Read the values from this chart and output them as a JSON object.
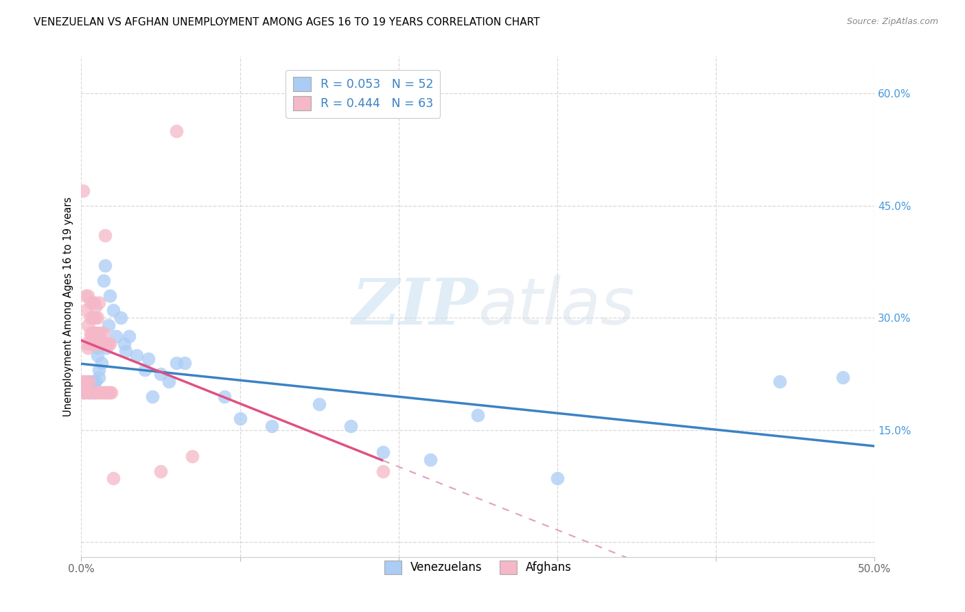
{
  "title": "VENEZUELAN VS AFGHAN UNEMPLOYMENT AMONG AGES 16 TO 19 YEARS CORRELATION CHART",
  "source": "Source: ZipAtlas.com",
  "ylabel": "Unemployment Among Ages 16 to 19 years",
  "xlim": [
    0.0,
    0.5
  ],
  "ylim": [
    -0.02,
    0.65
  ],
  "ytick_positions": [
    0.0,
    0.15,
    0.3,
    0.45,
    0.6
  ],
  "ytick_labels": [
    "",
    "15.0%",
    "30.0%",
    "45.0%",
    "60.0%"
  ],
  "xtick_positions": [
    0.0,
    0.1,
    0.2,
    0.3,
    0.4,
    0.5
  ],
  "xtick_labels": [
    "0.0%",
    "",
    "",
    "",
    "",
    "50.0%"
  ],
  "venezuelan_color": "#aaccf5",
  "afghan_color": "#f5b8c8",
  "venezuelan_line_color": "#3b82c4",
  "afghan_line_color": "#e05080",
  "afghan_line_dashed_color": "#e0a0b8",
  "r_venezuelan": 0.053,
  "n_venezuelan": 52,
  "r_afghan": 0.444,
  "n_afghan": 63,
  "venezuelan_x": [
    0.001,
    0.001,
    0.002,
    0.003,
    0.003,
    0.004,
    0.005,
    0.005,
    0.006,
    0.006,
    0.007,
    0.007,
    0.008,
    0.008,
    0.009,
    0.009,
    0.01,
    0.01,
    0.011,
    0.011,
    0.012,
    0.013,
    0.014,
    0.015,
    0.016,
    0.017,
    0.018,
    0.02,
    0.022,
    0.025,
    0.027,
    0.028,
    0.03,
    0.035,
    0.04,
    0.042,
    0.045,
    0.05,
    0.055,
    0.06,
    0.065,
    0.09,
    0.1,
    0.12,
    0.15,
    0.17,
    0.19,
    0.22,
    0.25,
    0.3,
    0.44,
    0.48
  ],
  "venezuelan_y": [
    0.2,
    0.215,
    0.205,
    0.21,
    0.2,
    0.21,
    0.205,
    0.215,
    0.21,
    0.2,
    0.205,
    0.215,
    0.21,
    0.2,
    0.215,
    0.2,
    0.25,
    0.26,
    0.22,
    0.23,
    0.27,
    0.24,
    0.35,
    0.37,
    0.26,
    0.29,
    0.33,
    0.31,
    0.275,
    0.3,
    0.265,
    0.255,
    0.275,
    0.25,
    0.23,
    0.245,
    0.195,
    0.225,
    0.215,
    0.24,
    0.24,
    0.195,
    0.165,
    0.155,
    0.185,
    0.155,
    0.12,
    0.11,
    0.17,
    0.085,
    0.215,
    0.22
  ],
  "afghan_x": [
    0.001,
    0.001,
    0.001,
    0.002,
    0.002,
    0.002,
    0.003,
    0.003,
    0.003,
    0.003,
    0.004,
    0.004,
    0.004,
    0.005,
    0.005,
    0.005,
    0.005,
    0.006,
    0.006,
    0.006,
    0.006,
    0.006,
    0.007,
    0.007,
    0.007,
    0.007,
    0.008,
    0.008,
    0.008,
    0.008,
    0.008,
    0.009,
    0.009,
    0.009,
    0.009,
    0.01,
    0.01,
    0.01,
    0.01,
    0.011,
    0.011,
    0.012,
    0.012,
    0.013,
    0.013,
    0.014,
    0.014,
    0.014,
    0.015,
    0.015,
    0.015,
    0.016,
    0.016,
    0.017,
    0.017,
    0.018,
    0.018,
    0.019,
    0.02,
    0.05,
    0.06,
    0.07,
    0.19
  ],
  "afghan_y": [
    0.2,
    0.215,
    0.47,
    0.205,
    0.21,
    0.2,
    0.215,
    0.31,
    0.33,
    0.265,
    0.26,
    0.29,
    0.33,
    0.2,
    0.265,
    0.215,
    0.2,
    0.265,
    0.28,
    0.3,
    0.32,
    0.275,
    0.28,
    0.3,
    0.32,
    0.265,
    0.265,
    0.28,
    0.3,
    0.32,
    0.2,
    0.265,
    0.28,
    0.3,
    0.315,
    0.2,
    0.265,
    0.28,
    0.3,
    0.2,
    0.32,
    0.265,
    0.28,
    0.2,
    0.265,
    0.2,
    0.265,
    0.28,
    0.2,
    0.265,
    0.41,
    0.2,
    0.265,
    0.2,
    0.265,
    0.2,
    0.265,
    0.2,
    0.085,
    0.095,
    0.55,
    0.115,
    0.095
  ],
  "watermark_zip": "ZIP",
  "watermark_atlas": "atlas",
  "background_color": "#ffffff",
  "grid_color": "#d8d8d8",
  "title_fontsize": 11,
  "axis_label_color": "#4499dd",
  "tick_label_color": "#666666"
}
